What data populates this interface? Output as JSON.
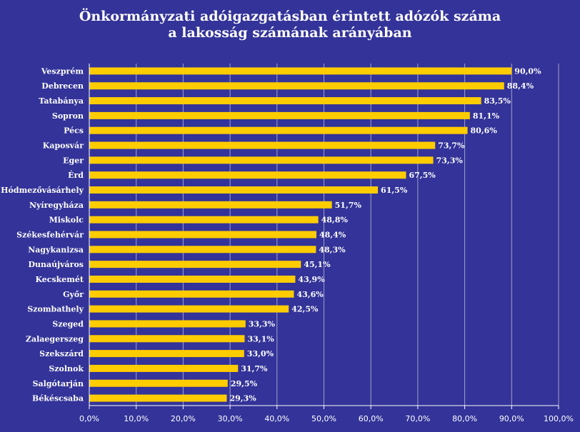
{
  "chart_data": {
    "type": "bar",
    "orientation": "horizontal",
    "title_line1": "Önkormányzati adóigazgatásban érintett adózók száma",
    "title_line2": "a lakosság számának arányában",
    "categories": [
      "Veszprém",
      "Debrecen",
      "Tatabánya",
      "Sopron",
      "Pécs",
      "Kaposvár",
      "Eger",
      "Érd",
      "Hódmezővásárhely",
      "Nyíregyháza",
      "Miskolc",
      "Székesfehérvár",
      "Nagykanizsa",
      "Dunaújváros",
      "Kecskemét",
      "Győr",
      "Szombathely",
      "Szeged",
      "Zalaegerszeg",
      "Szekszárd",
      "Szolnok",
      "Salgótarján",
      "Békéscsaba"
    ],
    "values": [
      90.0,
      88.4,
      83.5,
      81.1,
      80.6,
      73.7,
      73.3,
      67.5,
      61.5,
      51.7,
      48.8,
      48.4,
      48.3,
      45.1,
      43.9,
      43.6,
      42.5,
      33.3,
      33.1,
      33.0,
      31.7,
      29.5,
      29.3
    ],
    "value_labels": [
      "90,0%",
      "88,4%",
      "83,5%",
      "81,1%",
      "80,6%",
      "73,7%",
      "73,3%",
      "67,5%",
      "61,5%",
      "51,7%",
      "48,8%",
      "48,4%",
      "48,3%",
      "45,1%",
      "43,9%",
      "43,6%",
      "42,5%",
      "33,3%",
      "33,1%",
      "33,0%",
      "31,7%",
      "29,5%",
      "29,3%"
    ],
    "xlim": [
      0,
      100
    ],
    "xticks": [
      0,
      10,
      20,
      30,
      40,
      50,
      60,
      70,
      80,
      90,
      100
    ],
    "xtick_labels": [
      "0,0%",
      "10,0%",
      "20,0%",
      "30,0%",
      "40,0%",
      "50,0%",
      "60,0%",
      "70,0%",
      "80,0%",
      "90,0%",
      "100,0%"
    ],
    "grid": true,
    "colors": {
      "background": "#333399",
      "bar": "#FFCC00",
      "text": "#FFFFFF",
      "grid": "#A0A0C8",
      "axis": "#FFFFFF"
    }
  }
}
